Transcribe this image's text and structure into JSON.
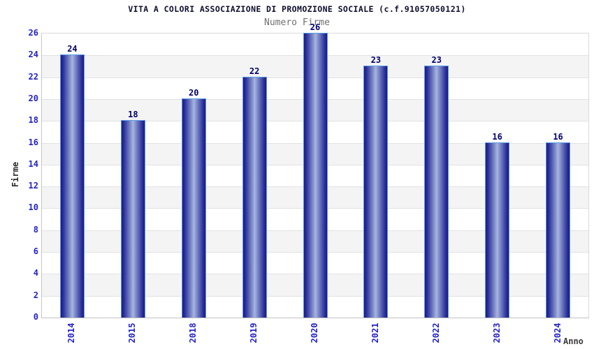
{
  "chart_data": {
    "type": "bar",
    "title": "VITA A COLORI ASSOCIAZIONE DI PROMOZIONE SOCIALE (c.f.91057050121)",
    "subtitle": "Numero Firme",
    "xlabel": "Anno",
    "ylabel": "Firme",
    "categories": [
      "2014",
      "2015",
      "2018",
      "2019",
      "2020",
      "2021",
      "2022",
      "2023",
      "2024"
    ],
    "values": [
      24,
      18,
      20,
      22,
      26,
      23,
      23,
      16,
      16
    ],
    "ylim": [
      0,
      26
    ],
    "ytick_step": 2,
    "yticks": [
      0,
      2,
      4,
      6,
      8,
      10,
      12,
      14,
      16,
      18,
      20,
      22,
      24,
      26
    ],
    "grid": "horizontal-bands",
    "legend": "none",
    "colors": {
      "bar_dark": "#1a1a84",
      "bar_light_center": "#a9b4e0",
      "bar_border": "#5c9ce6",
      "tick_label_blue": "#2222cc",
      "value_label_navy": "#000070",
      "title_color": "#0e0e2e",
      "subtitle_gray": "#6f6f6f",
      "axis_title_dark": "#3a3a3a",
      "band_gray": "#f4f4f4",
      "gridline_gray": "#e2e2e2"
    }
  }
}
